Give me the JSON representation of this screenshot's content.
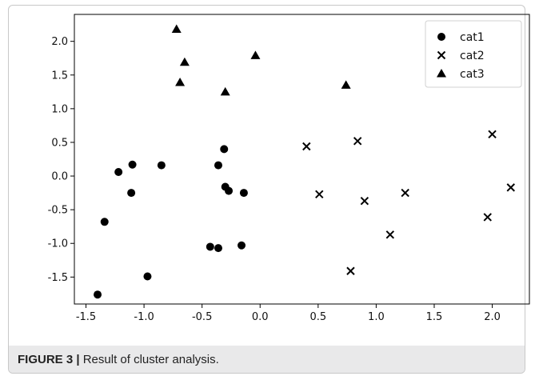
{
  "caption": {
    "label": "FIGURE 3 |",
    "text": "Result of cluster analysis."
  },
  "chart_data": {
    "type": "scatter",
    "title": "",
    "xlabel": "",
    "ylabel": "",
    "xlim": [
      -1.6,
      2.32
    ],
    "ylim": [
      -1.9,
      2.4
    ],
    "xticks": [
      -1.5,
      -1.0,
      -0.5,
      0.0,
      0.5,
      1.0,
      1.5,
      2.0
    ],
    "xtick_labels": [
      "-1.5",
      "-1.0",
      "-0.5",
      "0.0",
      "0.5",
      "1.0",
      "1.5",
      "2.0"
    ],
    "yticks": [
      2.0,
      1.5,
      1.0,
      0.5,
      0.0,
      -0.5,
      -1.0,
      -1.5
    ],
    "ytick_labels": [
      "2.0",
      "1.5",
      "1.0",
      "0.5",
      "0.0",
      "-0.5",
      "-1.0",
      "-1.5"
    ],
    "grid": false,
    "legend_position": "top-right",
    "series": [
      {
        "name": "cat1",
        "marker": "circle",
        "color": "#000000",
        "points": [
          [
            -1.4,
            -1.76
          ],
          [
            -1.34,
            -0.68
          ],
          [
            -1.22,
            0.06
          ],
          [
            -1.1,
            0.17
          ],
          [
            -1.11,
            -0.25
          ],
          [
            -0.85,
            0.16
          ],
          [
            -0.97,
            -1.49
          ],
          [
            -0.43,
            -1.05
          ],
          [
            -0.36,
            -1.07
          ],
          [
            -0.36,
            0.16
          ],
          [
            -0.31,
            0.4
          ],
          [
            -0.3,
            -0.16
          ],
          [
            -0.27,
            -0.22
          ],
          [
            -0.16,
            -1.03
          ],
          [
            -0.14,
            -0.25
          ]
        ]
      },
      {
        "name": "cat2",
        "marker": "x",
        "color": "#000000",
        "points": [
          [
            0.4,
            0.44
          ],
          [
            0.51,
            -0.27
          ],
          [
            0.84,
            0.52
          ],
          [
            0.9,
            -0.37
          ],
          [
            0.78,
            -1.41
          ],
          [
            1.12,
            -0.87
          ],
          [
            1.25,
            -0.25
          ],
          [
            1.96,
            -0.61
          ],
          [
            2.0,
            0.62
          ],
          [
            2.16,
            -0.17
          ]
        ]
      },
      {
        "name": "cat3",
        "marker": "triangle",
        "color": "#000000",
        "points": [
          [
            -0.72,
            2.18
          ],
          [
            -0.65,
            1.69
          ],
          [
            -0.69,
            1.39
          ],
          [
            -0.3,
            1.25
          ],
          [
            -0.04,
            1.79
          ],
          [
            0.74,
            1.35
          ]
        ]
      }
    ]
  }
}
